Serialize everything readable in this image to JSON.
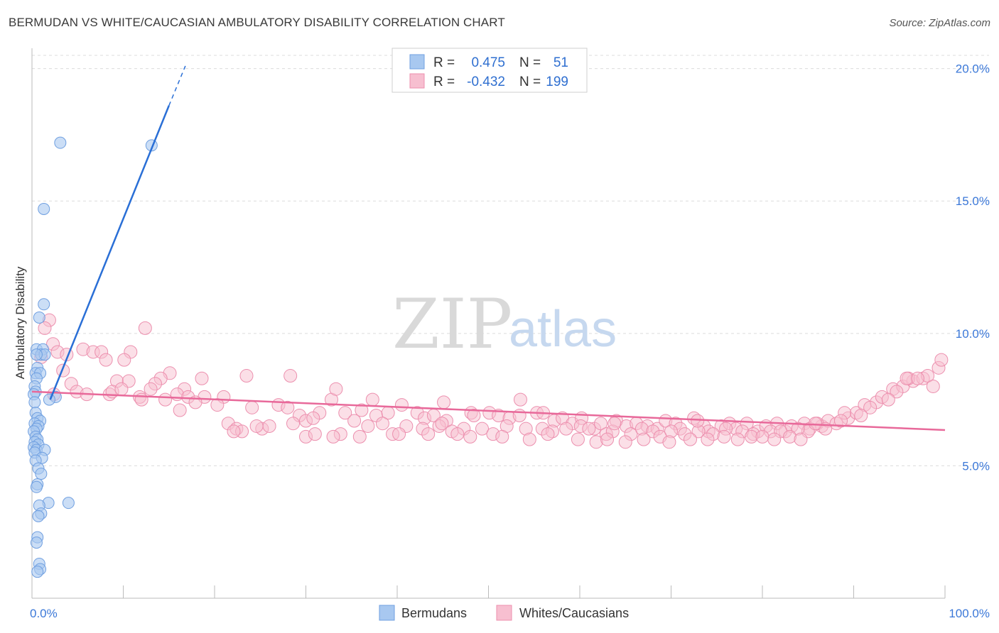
{
  "title": "BERMUDAN VS WHITE/CAUCASIAN AMBULATORY DISABILITY CORRELATION CHART",
  "source": "Source: ZipAtlas.com",
  "watermark": {
    "zip": "ZIP",
    "atlas": "atlas"
  },
  "colors": {
    "blue_fill": "#a8c8f0",
    "blue_stroke": "#6f9fe0",
    "blue_line": "#2a6fd6",
    "pink_fill": "#f7bfd0",
    "pink_stroke": "#ec8fae",
    "pink_line": "#e8699a",
    "grid": "#dcdcdc",
    "label": "#3b78d8"
  },
  "legend": {
    "rows": [
      {
        "r_label": "R =",
        "r_value": "0.475",
        "n_label": "N =",
        "n_value": "51"
      },
      {
        "r_label": "R =",
        "r_value": "-0.432",
        "n_label": "N =",
        "n_value": "199"
      }
    ]
  },
  "bottom_legend": [
    "Bermudans",
    "Whites/Caucasians"
  ],
  "chart_data": {
    "type": "scatter",
    "ylabel": "Ambulatory Disability",
    "xlabel": "",
    "xlim": [
      0,
      100
    ],
    "ylim": [
      0,
      20.5
    ],
    "y_ticks": [
      5,
      10,
      15,
      20
    ],
    "y_tick_labels": [
      "5.0%",
      "10.0%",
      "15.0%",
      "20.0%"
    ],
    "x_tick_labels": [
      "0.0%",
      "100.0%"
    ],
    "series": [
      {
        "name": "Bermudans",
        "r": 0.475,
        "n": 51,
        "trend": {
          "x0": 2.0,
          "y0": 7.5,
          "x1": 15.0,
          "y1": 18.6,
          "dash_to_x": 16.8,
          "dash_to_y": 20.1
        },
        "points": [
          [
            3.1,
            17.2
          ],
          [
            13.1,
            17.1
          ],
          [
            1.3,
            14.7
          ],
          [
            1.3,
            11.1
          ],
          [
            0.8,
            10.6
          ],
          [
            0.5,
            9.4
          ],
          [
            1.2,
            9.4
          ],
          [
            1.0,
            9.2
          ],
          [
            1.4,
            9.2
          ],
          [
            0.5,
            9.2
          ],
          [
            0.6,
            8.7
          ],
          [
            0.4,
            8.5
          ],
          [
            0.9,
            8.5
          ],
          [
            0.5,
            8.3
          ],
          [
            0.3,
            8.0
          ],
          [
            0.4,
            7.8
          ],
          [
            0.2,
            7.7
          ],
          [
            2.6,
            7.6
          ],
          [
            1.9,
            7.5
          ],
          [
            0.3,
            7.4
          ],
          [
            0.4,
            7.0
          ],
          [
            0.6,
            6.8
          ],
          [
            0.9,
            6.7
          ],
          [
            0.3,
            6.6
          ],
          [
            0.7,
            6.5
          ],
          [
            0.5,
            6.4
          ],
          [
            0.2,
            6.3
          ],
          [
            0.4,
            6.1
          ],
          [
            0.6,
            6.0
          ],
          [
            0.3,
            5.9
          ],
          [
            0.7,
            5.8
          ],
          [
            0.2,
            5.7
          ],
          [
            0.5,
            5.6
          ],
          [
            1.4,
            5.6
          ],
          [
            0.3,
            5.5
          ],
          [
            1.1,
            5.3
          ],
          [
            0.4,
            5.2
          ],
          [
            0.7,
            4.9
          ],
          [
            1.0,
            4.7
          ],
          [
            0.6,
            4.3
          ],
          [
            0.5,
            4.2
          ],
          [
            4.0,
            3.6
          ],
          [
            1.8,
            3.6
          ],
          [
            0.8,
            3.5
          ],
          [
            1.0,
            3.2
          ],
          [
            0.7,
            3.1
          ],
          [
            0.6,
            2.3
          ],
          [
            0.5,
            2.1
          ],
          [
            0.8,
            1.3
          ],
          [
            0.9,
            1.1
          ],
          [
            0.6,
            1.0
          ]
        ]
      },
      {
        "name": "Whites/Caucasians",
        "r": -0.432,
        "n": 199,
        "trend": {
          "x0": 0.0,
          "y0": 7.8,
          "x1": 100.0,
          "y1": 6.35
        },
        "points": [
          [
            1.9,
            10.5
          ],
          [
            1.4,
            10.2
          ],
          [
            12.4,
            10.2
          ],
          [
            2.3,
            9.6
          ],
          [
            5.6,
            9.4
          ],
          [
            2.8,
            9.3
          ],
          [
            6.7,
            9.3
          ],
          [
            7.6,
            9.3
          ],
          [
            10.8,
            9.3
          ],
          [
            1.0,
            9.1
          ],
          [
            3.8,
            9.2
          ],
          [
            8.1,
            9.0
          ],
          [
            10.1,
            9.0
          ],
          [
            3.4,
            8.6
          ],
          [
            15.1,
            8.5
          ],
          [
            23.5,
            8.4
          ],
          [
            14.1,
            8.3
          ],
          [
            18.6,
            8.3
          ],
          [
            9.3,
            8.2
          ],
          [
            10.6,
            8.2
          ],
          [
            4.3,
            8.1
          ],
          [
            13.5,
            8.1
          ],
          [
            13.0,
            7.9
          ],
          [
            16.7,
            7.9
          ],
          [
            28.3,
            8.4
          ],
          [
            2.4,
            7.7
          ],
          [
            4.9,
            7.8
          ],
          [
            6.0,
            7.7
          ],
          [
            8.5,
            7.7
          ],
          [
            11.8,
            7.6
          ],
          [
            15.9,
            7.7
          ],
          [
            17.1,
            7.6
          ],
          [
            18.9,
            7.6
          ],
          [
            21.0,
            7.6
          ],
          [
            8.8,
            7.8
          ],
          [
            9.8,
            7.9
          ],
          [
            12.0,
            7.5
          ],
          [
            14.6,
            7.5
          ],
          [
            17.9,
            7.4
          ],
          [
            20.3,
            7.3
          ],
          [
            16.2,
            7.1
          ],
          [
            24.1,
            7.2
          ],
          [
            27.0,
            7.3
          ],
          [
            29.3,
            6.9
          ],
          [
            31.5,
            7.0
          ],
          [
            28.0,
            7.2
          ],
          [
            32.8,
            7.5
          ],
          [
            34.3,
            7.0
          ],
          [
            36.1,
            7.1
          ],
          [
            37.3,
            7.5
          ],
          [
            33.3,
            7.9
          ],
          [
            37.7,
            6.9
          ],
          [
            39.0,
            7.0
          ],
          [
            40.5,
            7.3
          ],
          [
            42.2,
            7.0
          ],
          [
            45.1,
            7.4
          ],
          [
            43.0,
            6.8
          ],
          [
            44.0,
            6.9
          ],
          [
            45.4,
            6.7
          ],
          [
            48.1,
            7.0
          ],
          [
            48.4,
            6.9
          ],
          [
            50.1,
            7.0
          ],
          [
            51.1,
            6.9
          ],
          [
            52.3,
            6.8
          ],
          [
            53.4,
            6.9
          ],
          [
            55.3,
            7.0
          ],
          [
            57.2,
            6.7
          ],
          [
            58.1,
            6.8
          ],
          [
            53.5,
            7.5
          ],
          [
            59.2,
            6.6
          ],
          [
            60.2,
            6.8
          ],
          [
            61.6,
            6.4
          ],
          [
            62.3,
            6.6
          ],
          [
            64.0,
            6.7
          ],
          [
            65.1,
            6.5
          ],
          [
            66.2,
            6.6
          ],
          [
            67.4,
            6.5
          ],
          [
            68.5,
            6.4
          ],
          [
            69.4,
            6.7
          ],
          [
            70.5,
            6.6
          ],
          [
            71.0,
            6.4
          ],
          [
            72.5,
            6.8
          ],
          [
            73.6,
            6.5
          ],
          [
            74.1,
            6.3
          ],
          [
            75.5,
            6.5
          ],
          [
            76.4,
            6.6
          ],
          [
            77.1,
            6.4
          ],
          [
            78.3,
            6.6
          ],
          [
            79.5,
            6.3
          ],
          [
            80.4,
            6.5
          ],
          [
            81.6,
            6.6
          ],
          [
            82.5,
            6.3
          ],
          [
            83.2,
            6.5
          ],
          [
            84.6,
            6.6
          ],
          [
            85.2,
            6.4
          ],
          [
            86.5,
            6.5
          ],
          [
            87.2,
            6.7
          ],
          [
            88.1,
            6.6
          ],
          [
            89.4,
            6.8
          ],
          [
            90.3,
            7.0
          ],
          [
            91.2,
            7.3
          ],
          [
            92.5,
            7.4
          ],
          [
            93.1,
            7.6
          ],
          [
            94.3,
            7.9
          ],
          [
            95.4,
            8.0
          ],
          [
            96.5,
            8.2
          ],
          [
            97.6,
            8.3
          ],
          [
            98.1,
            8.4
          ],
          [
            98.7,
            8.0
          ],
          [
            99.3,
            8.7
          ],
          [
            99.6,
            9.0
          ],
          [
            96.0,
            8.3
          ],
          [
            94.7,
            7.8
          ],
          [
            93.8,
            7.5
          ],
          [
            91.8,
            7.2
          ],
          [
            90.8,
            6.9
          ],
          [
            89.0,
            7.0
          ],
          [
            88.6,
            6.7
          ],
          [
            86.0,
            6.6
          ],
          [
            85.0,
            6.3
          ],
          [
            21.5,
            6.6
          ],
          [
            22.4,
            6.4
          ],
          [
            23.0,
            6.3
          ],
          [
            25.2,
            6.4
          ],
          [
            26.0,
            6.5
          ],
          [
            28.6,
            6.6
          ],
          [
            30.0,
            6.7
          ],
          [
            30.8,
            6.8
          ],
          [
            35.3,
            6.7
          ],
          [
            38.4,
            6.6
          ],
          [
            41.0,
            6.5
          ],
          [
            42.8,
            6.4
          ],
          [
            44.6,
            6.5
          ],
          [
            46.0,
            6.3
          ],
          [
            47.3,
            6.4
          ],
          [
            49.3,
            6.4
          ],
          [
            50.5,
            6.2
          ],
          [
            52.0,
            6.5
          ],
          [
            54.1,
            6.4
          ],
          [
            55.9,
            6.4
          ],
          [
            57.0,
            6.3
          ],
          [
            58.5,
            6.4
          ],
          [
            60.1,
            6.5
          ],
          [
            61.0,
            6.4
          ],
          [
            62.9,
            6.2
          ],
          [
            63.6,
            6.3
          ],
          [
            65.6,
            6.2
          ],
          [
            66.8,
            6.4
          ],
          [
            68.0,
            6.3
          ],
          [
            70.0,
            6.3
          ],
          [
            71.5,
            6.2
          ],
          [
            73.0,
            6.3
          ],
          [
            74.6,
            6.2
          ],
          [
            76.0,
            6.4
          ],
          [
            77.8,
            6.3
          ],
          [
            79.0,
            6.2
          ],
          [
            80.9,
            6.3
          ],
          [
            82.0,
            6.3
          ],
          [
            83.9,
            6.4
          ],
          [
            86.9,
            6.4
          ],
          [
            30.0,
            6.1
          ],
          [
            31.0,
            6.2
          ],
          [
            33.8,
            6.2
          ],
          [
            35.9,
            6.1
          ],
          [
            39.5,
            6.2
          ],
          [
            40.2,
            6.2
          ],
          [
            43.4,
            6.2
          ],
          [
            46.6,
            6.2
          ],
          [
            48.0,
            6.1
          ],
          [
            51.5,
            6.1
          ],
          [
            54.5,
            6.0
          ],
          [
            56.5,
            6.2
          ],
          [
            59.8,
            6.0
          ],
          [
            61.8,
            5.9
          ],
          [
            63.0,
            6.0
          ],
          [
            65.0,
            5.9
          ],
          [
            67.0,
            6.0
          ],
          [
            68.8,
            6.1
          ],
          [
            69.8,
            5.9
          ],
          [
            72.1,
            6.0
          ],
          [
            74.0,
            6.0
          ],
          [
            75.8,
            6.1
          ],
          [
            77.3,
            6.0
          ],
          [
            78.8,
            6.1
          ],
          [
            80.0,
            6.1
          ],
          [
            81.3,
            6.0
          ],
          [
            83.0,
            6.1
          ],
          [
            84.2,
            6.0
          ],
          [
            33.0,
            6.1
          ],
          [
            24.6,
            6.5
          ],
          [
            22.1,
            6.3
          ],
          [
            36.8,
            6.5
          ],
          [
            44.9,
            6.6
          ],
          [
            56.0,
            7.0
          ],
          [
            63.8,
            6.6
          ],
          [
            72.9,
            6.7
          ],
          [
            85.8,
            6.6
          ],
          [
            95.8,
            8.3
          ],
          [
            97.0,
            8.3
          ]
        ]
      }
    ]
  }
}
